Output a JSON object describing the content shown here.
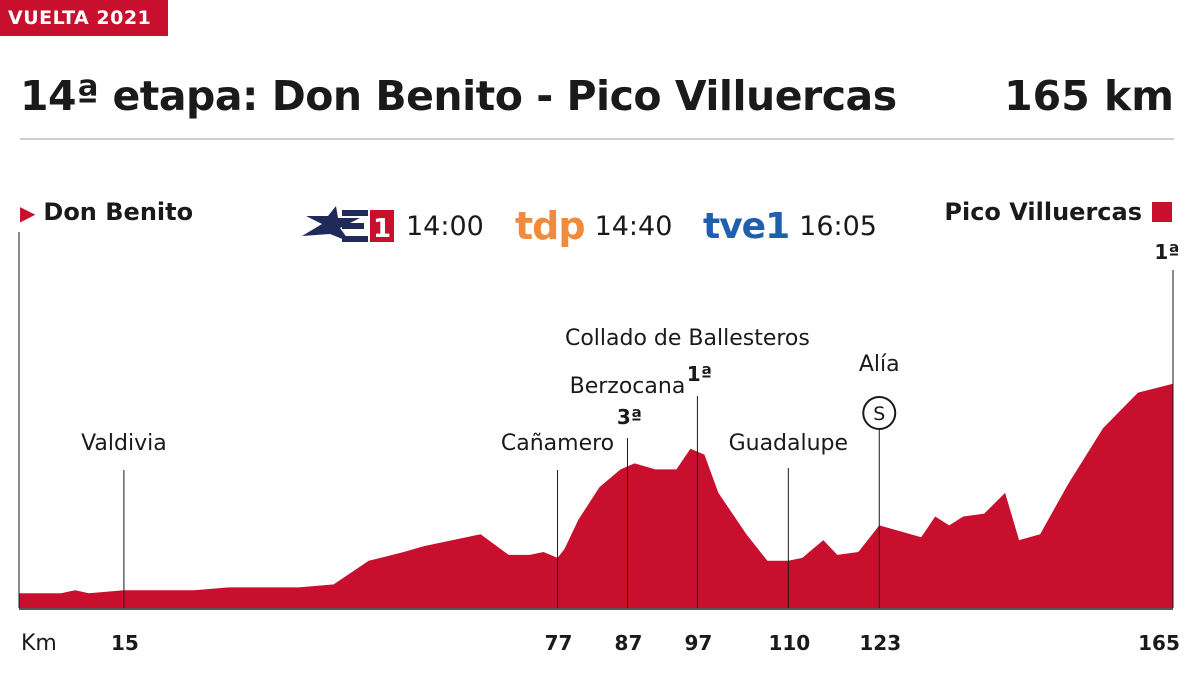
{
  "badge": "VUELTA 2021",
  "title": "14ª etapa: Don Benito - Pico Villuercas",
  "distance": "165 km",
  "start": "Don Benito",
  "finish": "Pico Villuercas",
  "finish_category": "1ª",
  "broadcasts": [
    {
      "channel": "eurosport-1",
      "time": "14:00"
    },
    {
      "channel": "tdp",
      "logo_text": "tdp",
      "time": "14:40"
    },
    {
      "channel": "tve1",
      "logo_text": "tve1",
      "time": "16:05"
    }
  ],
  "colors": {
    "profile": "#c8102e",
    "accent": "#c8102e",
    "tdp": "#f08a3c",
    "tve": "#1f5fae"
  },
  "chart_data": {
    "type": "area",
    "xlabel": "Km",
    "xlim": [
      0,
      165
    ],
    "x_ticks": [
      15,
      77,
      87,
      97,
      110,
      123,
      165
    ],
    "profile": {
      "x": [
        0,
        3,
        6,
        8,
        10,
        15,
        20,
        25,
        30,
        35,
        40,
        45,
        50,
        55,
        58,
        62,
        66,
        70,
        73,
        75,
        77,
        78,
        80,
        83,
        86,
        88,
        91,
        94,
        96,
        98,
        100,
        104,
        107,
        110,
        112,
        115,
        117,
        120,
        123,
        126,
        129,
        131,
        133,
        135,
        138,
        141,
        143,
        146,
        150,
        155,
        160,
        165
      ],
      "y": [
        5,
        5,
        5,
        6,
        5,
        6,
        6,
        6,
        7,
        7,
        7,
        8,
        16,
        19,
        21,
        23,
        25,
        18,
        18,
        19,
        17,
        20,
        30,
        41,
        47,
        49,
        47,
        47,
        54,
        52,
        39,
        25,
        16,
        16,
        17,
        23,
        18,
        19,
        28,
        26,
        24,
        31,
        28,
        31,
        32,
        39,
        23,
        25,
        42,
        61,
        73,
        76
      ]
    },
    "points": [
      {
        "name": "Valdivia",
        "km": 15
      },
      {
        "name": "Cañamero",
        "km": 77
      },
      {
        "name": "Berzocana",
        "km": 87,
        "category": "3ª"
      },
      {
        "name": "Collado de Ballesteros",
        "km": 97,
        "category": "1ª"
      },
      {
        "name": "Guadalupe",
        "km": 110
      },
      {
        "name": "Alía",
        "km": 123,
        "sprint": "S"
      }
    ]
  }
}
